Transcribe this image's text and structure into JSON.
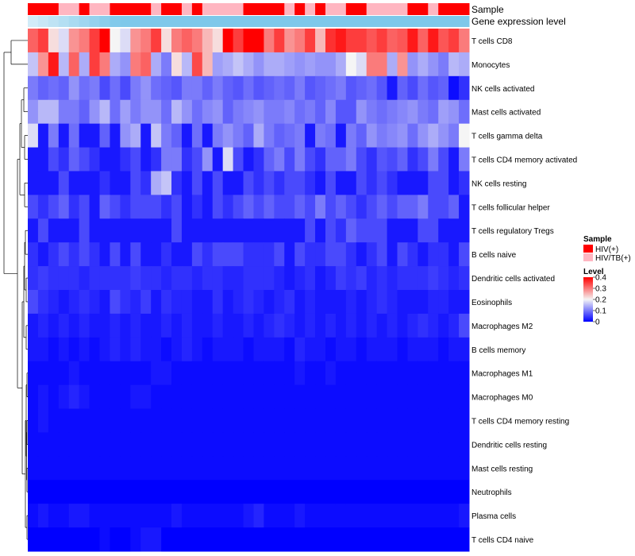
{
  "chart_data": {
    "type": "heatmap",
    "annotation_tracks": [
      "Sample",
      "Gene expression level"
    ],
    "rows": [
      "T cells CD8",
      "Monocytes",
      "NK cells activated",
      "Mast cells activated",
      "T cells gamma delta",
      "T cells CD4 memory activated",
      "NK cells resting",
      "T cells follicular helper",
      "T cells regulatory  Tregs",
      "B cells naive",
      "Dendritic cells activated",
      "Eosinophils",
      "Macrophages M2",
      "B cells memory",
      "Macrophages M1",
      "Macrophages M0",
      "T cells CD4 memory resting",
      "Dendritic cells resting",
      "Mast cells resting",
      "Neutrophils",
      "Plasma cells",
      "T cells CD4 naive"
    ],
    "columns": 43,
    "sample_track": [
      "HIV(+)",
      "HIV(+)",
      "HIV(+)",
      "HIV/TB(+)",
      "HIV/TB(+)",
      "HIV(+)",
      "HIV/TB(+)",
      "HIV/TB(+)",
      "HIV(+)",
      "HIV(+)",
      "HIV(+)",
      "HIV(+)",
      "HIV/TB(+)",
      "HIV(+)",
      "HIV(+)",
      "HIV/TB(+)",
      "HIV(+)",
      "HIV/TB(+)",
      "HIV/TB(+)",
      "HIV/TB(+)",
      "HIV/TB(+)",
      "HIV(+)",
      "HIV(+)",
      "HIV(+)",
      "HIV(+)",
      "HIV/TB(+)",
      "HIV(+)",
      "HIV/TB(+)",
      "HIV(+)",
      "HIV/TB(+)",
      "HIV/TB(+)",
      "HIV(+)",
      "HIV(+)",
      "HIV/TB(+)",
      "HIV/TB(+)",
      "HIV/TB(+)",
      "HIV/TB(+)",
      "HIV(+)",
      "HIV(+)",
      "HIV/TB(+)",
      "HIV(+)",
      "HIV(+)",
      "HIV(+)"
    ],
    "expression_track_color": "#7ec8ea",
    "values": [
      [
        0.32,
        0.35,
        0.22,
        0.18,
        0.28,
        0.3,
        0.35,
        0.4,
        0.2,
        0.18,
        0.28,
        0.3,
        0.35,
        0.22,
        0.3,
        0.32,
        0.3,
        0.25,
        0.22,
        0.4,
        0.35,
        0.4,
        0.4,
        0.3,
        0.35,
        0.28,
        0.3,
        0.35,
        0.25,
        0.36,
        0.38,
        0.35,
        0.35,
        0.33,
        0.35,
        0.32,
        0.33,
        0.38,
        0.32,
        0.38,
        0.33,
        0.35,
        0.3
      ],
      [
        0.16,
        0.28,
        0.38,
        0.15,
        0.32,
        0.14,
        0.35,
        0.3,
        0.14,
        0.12,
        0.3,
        0.32,
        0.14,
        0.1,
        0.22,
        0.15,
        0.34,
        0.25,
        0.13,
        0.14,
        0.16,
        0.14,
        0.12,
        0.14,
        0.14,
        0.13,
        0.12,
        0.13,
        0.12,
        0.12,
        0.14,
        0.2,
        0.18,
        0.3,
        0.3,
        0.14,
        0.28,
        0.12,
        0.14,
        0.12,
        0.1,
        0.15,
        0.14
      ],
      [
        0.1,
        0.08,
        0.09,
        0.08,
        0.12,
        0.09,
        0.1,
        0.06,
        0.09,
        0.06,
        0.1,
        0.12,
        0.09,
        0.08,
        0.07,
        0.1,
        0.1,
        0.08,
        0.1,
        0.08,
        0.07,
        0.09,
        0.07,
        0.08,
        0.09,
        0.08,
        0.1,
        0.07,
        0.08,
        0.09,
        0.1,
        0.07,
        0.08,
        0.09,
        0.07,
        0.02,
        0.08,
        0.06,
        0.09,
        0.07,
        0.08,
        0.01,
        0.04
      ],
      [
        0.12,
        0.15,
        0.15,
        0.1,
        0.1,
        0.08,
        0.12,
        0.15,
        0.09,
        0.13,
        0.1,
        0.12,
        0.12,
        0.09,
        0.15,
        0.12,
        0.09,
        0.11,
        0.12,
        0.08,
        0.1,
        0.11,
        0.12,
        0.1,
        0.1,
        0.11,
        0.09,
        0.1,
        0.08,
        0.11,
        0.07,
        0.07,
        0.12,
        0.1,
        0.09,
        0.1,
        0.11,
        0.12,
        0.1,
        0.09,
        0.13,
        0.12,
        0.09
      ],
      [
        0.18,
        0.02,
        0.1,
        0.02,
        0.09,
        0.02,
        0.02,
        0.08,
        0.02,
        0.12,
        0.14,
        0.02,
        0.16,
        0.1,
        0.08,
        0.02,
        0.09,
        0.02,
        0.1,
        0.12,
        0.1,
        0.08,
        0.14,
        0.1,
        0.08,
        0.09,
        0.1,
        0.02,
        0.1,
        0.09,
        0.02,
        0.1,
        0.08,
        0.12,
        0.1,
        0.11,
        0.12,
        0.09,
        0.12,
        0.14,
        0.12,
        0.1,
        0.2
      ],
      [
        0.02,
        0.02,
        0.06,
        0.04,
        0.08,
        0.06,
        0.04,
        0.02,
        0.02,
        0.04,
        0.06,
        0.02,
        0.04,
        0.1,
        0.1,
        0.04,
        0.06,
        0.12,
        0.02,
        0.18,
        0.06,
        0.02,
        0.04,
        0.08,
        0.1,
        0.06,
        0.1,
        0.06,
        0.04,
        0.08,
        0.08,
        0.1,
        0.06,
        0.04,
        0.07,
        0.06,
        0.08,
        0.04,
        0.06,
        0.1,
        0.06,
        0.02,
        0.1
      ],
      [
        0.02,
        0.02,
        0.02,
        0.06,
        0.02,
        0.02,
        0.02,
        0.04,
        0.02,
        0.02,
        0.06,
        0.04,
        0.14,
        0.16,
        0.04,
        0.02,
        0.06,
        0.02,
        0.06,
        0.02,
        0.02,
        0.06,
        0.04,
        0.06,
        0.04,
        0.06,
        0.06,
        0.04,
        0.02,
        0.06,
        0.02,
        0.02,
        0.06,
        0.04,
        0.06,
        0.04,
        0.02,
        0.02,
        0.02,
        0.06,
        0.06,
        0.02,
        0.04
      ],
      [
        0.06,
        0.04,
        0.06,
        0.08,
        0.04,
        0.06,
        0.02,
        0.08,
        0.06,
        0.04,
        0.06,
        0.06,
        0.06,
        0.04,
        0.06,
        0.02,
        0.04,
        0.02,
        0.06,
        0.04,
        0.06,
        0.08,
        0.06,
        0.08,
        0.06,
        0.06,
        0.08,
        0.06,
        0.1,
        0.06,
        0.08,
        0.06,
        0.04,
        0.06,
        0.08,
        0.06,
        0.08,
        0.08,
        0.1,
        0.06,
        0.06,
        0.08,
        0.02
      ],
      [
        0.02,
        0.06,
        0.02,
        0.02,
        0.02,
        0.06,
        0.02,
        0.02,
        0.02,
        0.02,
        0.02,
        0.02,
        0.02,
        0.02,
        0.06,
        0.02,
        0.02,
        0.02,
        0.02,
        0.02,
        0.02,
        0.02,
        0.02,
        0.02,
        0.02,
        0.02,
        0.02,
        0.06,
        0.02,
        0.06,
        0.04,
        0.08,
        0.06,
        0.06,
        0.06,
        0.02,
        0.02,
        0.02,
        0.06,
        0.06,
        0.02,
        0.02,
        0.02
      ],
      [
        0.04,
        0.02,
        0.04,
        0.06,
        0.04,
        0.06,
        0.04,
        0.02,
        0.06,
        0.02,
        0.06,
        0.02,
        0.02,
        0.04,
        0.02,
        0.02,
        0.06,
        0.04,
        0.06,
        0.06,
        0.06,
        0.04,
        0.04,
        0.04,
        0.06,
        0.02,
        0.06,
        0.04,
        0.04,
        0.06,
        0.06,
        0.04,
        0.02,
        0.04,
        0.06,
        0.02,
        0.06,
        0.04,
        0.02,
        0.04,
        0.04,
        0.02,
        0.06
      ],
      [
        0.04,
        0.05,
        0.04,
        0.04,
        0.04,
        0.03,
        0.04,
        0.04,
        0.04,
        0.04,
        0.05,
        0.04,
        0.04,
        0.03,
        0.04,
        0.04,
        0.03,
        0.04,
        0.04,
        0.03,
        0.03,
        0.04,
        0.04,
        0.04,
        0.03,
        0.02,
        0.03,
        0.04,
        0.02,
        0.03,
        0.05,
        0.04,
        0.05,
        0.03,
        0.04,
        0.03,
        0.04,
        0.04,
        0.04,
        0.05,
        0.04,
        0.03,
        0.04
      ],
      [
        0.06,
        0.04,
        0.03,
        0.02,
        0.03,
        0.04,
        0.03,
        0.02,
        0.06,
        0.04,
        0.03,
        0.05,
        0.02,
        0.04,
        0.03,
        0.03,
        0.02,
        0.02,
        0.04,
        0.02,
        0.03,
        0.04,
        0.03,
        0.02,
        0.03,
        0.04,
        0.02,
        0.03,
        0.02,
        0.02,
        0.02,
        0.03,
        0.02,
        0.03,
        0.04,
        0.03,
        0.02,
        0.02,
        0.02,
        0.03,
        0.03,
        0.02,
        0.02
      ],
      [
        0.02,
        0.03,
        0.02,
        0.03,
        0.02,
        0.03,
        0.02,
        0.02,
        0.03,
        0.02,
        0.03,
        0.02,
        0.02,
        0.03,
        0.02,
        0.03,
        0.02,
        0.02,
        0.03,
        0.02,
        0.02,
        0.03,
        0.02,
        0.03,
        0.04,
        0.03,
        0.02,
        0.03,
        0.02,
        0.03,
        0.02,
        0.03,
        0.02,
        0.03,
        0.02,
        0.03,
        0.02,
        0.03,
        0.04,
        0.03,
        0.02,
        0.03,
        0.06
      ],
      [
        0.02,
        0.02,
        0.01,
        0.02,
        0.01,
        0.02,
        0.01,
        0.02,
        0.03,
        0.02,
        0.03,
        0.02,
        0.02,
        0.01,
        0.02,
        0.03,
        0.02,
        0.01,
        0.02,
        0.02,
        0.02,
        0.01,
        0.02,
        0.02,
        0.02,
        0.01,
        0.03,
        0.02,
        0.02,
        0.01,
        0.02,
        0.02,
        0.01,
        0.02,
        0.02,
        0.02,
        0.01,
        0.02,
        0.02,
        0.02,
        0.01,
        0.02,
        0.02
      ],
      [
        0.01,
        0.01,
        0.01,
        0.01,
        0.02,
        0.01,
        0.01,
        0.01,
        0.01,
        0.01,
        0.01,
        0.01,
        0.02,
        0.02,
        0.01,
        0.01,
        0.01,
        0.01,
        0.01,
        0.01,
        0.01,
        0.01,
        0.01,
        0.01,
        0.01,
        0.01,
        0.02,
        0.01,
        0.01,
        0.02,
        0.01,
        0.01,
        0.01,
        0.01,
        0.01,
        0.01,
        0.01,
        0.01,
        0.01,
        0.01,
        0.01,
        0.01,
        0.01
      ],
      [
        0.01,
        0.02,
        0.01,
        0.02,
        0.03,
        0.02,
        0.01,
        0.01,
        0.01,
        0.01,
        0.02,
        0.02,
        0.01,
        0.01,
        0.01,
        0.01,
        0.01,
        0.01,
        0.01,
        0.01,
        0.01,
        0.01,
        0.01,
        0.01,
        0.01,
        0.01,
        0.01,
        0.01,
        0.01,
        0.01,
        0.01,
        0.01,
        0.01,
        0.01,
        0.01,
        0.01,
        0.01,
        0.01,
        0.01,
        0.01,
        0.01,
        0.01,
        0.01
      ],
      [
        0.01,
        0.02,
        0.01,
        0.01,
        0.01,
        0.01,
        0.01,
        0.01,
        0.01,
        0.01,
        0.01,
        0.01,
        0.01,
        0.01,
        0.01,
        0.01,
        0.01,
        0.01,
        0.01,
        0.01,
        0.01,
        0.01,
        0.01,
        0.01,
        0.01,
        0.01,
        0.01,
        0.01,
        0.01,
        0.01,
        0.01,
        0.01,
        0.01,
        0.01,
        0.01,
        0.01,
        0.01,
        0.01,
        0.01,
        0.01,
        0.01,
        0.01,
        0.01
      ],
      [
        0.01,
        0.01,
        0.01,
        0.01,
        0.01,
        0.01,
        0.01,
        0.01,
        0.01,
        0.01,
        0.01,
        0.01,
        0.01,
        0.01,
        0.01,
        0.01,
        0.01,
        0.01,
        0.01,
        0.01,
        0.01,
        0.01,
        0.01,
        0.01,
        0.01,
        0.01,
        0.01,
        0.01,
        0.01,
        0.01,
        0.01,
        0.01,
        0.01,
        0.01,
        0.01,
        0.01,
        0.01,
        0.01,
        0.01,
        0.01,
        0.01,
        0.01,
        0.01
      ],
      [
        0.01,
        0.01,
        0.01,
        0.01,
        0.01,
        0.01,
        0.01,
        0.01,
        0.01,
        0.01,
        0.01,
        0.01,
        0.01,
        0.01,
        0.01,
        0.01,
        0.01,
        0.01,
        0.01,
        0.01,
        0.01,
        0.01,
        0.01,
        0.01,
        0.01,
        0.01,
        0.01,
        0.01,
        0.01,
        0.01,
        0.01,
        0.01,
        0.01,
        0.01,
        0.01,
        0.01,
        0.01,
        0.01,
        0.01,
        0.01,
        0.01,
        0.01,
        0.01
      ],
      [
        0.0,
        0.0,
        0.0,
        0.0,
        0.0,
        0.0,
        0.0,
        0.0,
        0.0,
        0.0,
        0.0,
        0.0,
        0.0,
        0.0,
        0.0,
        0.0,
        0.0,
        0.0,
        0.0,
        0.0,
        0.0,
        0.0,
        0.0,
        0.0,
        0.0,
        0.0,
        0.0,
        0.0,
        0.0,
        0.0,
        0.0,
        0.0,
        0.0,
        0.0,
        0.0,
        0.0,
        0.0,
        0.0,
        0.0,
        0.0,
        0.0,
        0.0,
        0.0
      ],
      [
        0.01,
        0.02,
        0.01,
        0.01,
        0.02,
        0.02,
        0.01,
        0.01,
        0.01,
        0.01,
        0.01,
        0.01,
        0.01,
        0.01,
        0.02,
        0.01,
        0.01,
        0.01,
        0.01,
        0.01,
        0.01,
        0.02,
        0.03,
        0.01,
        0.01,
        0.01,
        0.02,
        0.01,
        0.01,
        0.01,
        0.01,
        0.01,
        0.01,
        0.01,
        0.01,
        0.01,
        0.01,
        0.01,
        0.01,
        0.01,
        0.01,
        0.01,
        0.02
      ],
      [
        0.0,
        0.0,
        0.0,
        0.0,
        0.0,
        0.0,
        0.0,
        0.01,
        0.0,
        0.0,
        0.01,
        0.02,
        0.02,
        0.0,
        0.0,
        0.0,
        0.0,
        0.0,
        0.0,
        0.0,
        0.0,
        0.0,
        0.0,
        0.0,
        0.0,
        0.0,
        0.0,
        0.0,
        0.0,
        0.0,
        0.0,
        0.0,
        0.0,
        0.0,
        0.0,
        0.0,
        0.0,
        0.0,
        0.0,
        0.0,
        0.0,
        0.0,
        0.0
      ]
    ],
    "sample_legend": {
      "title": "Sample",
      "entries": [
        {
          "label": "HIV(+)",
          "color": "#ff0000"
        },
        {
          "label": "HIV/TB(+)",
          "color": "#ffb6c1"
        }
      ]
    },
    "level_legend": {
      "title": "Level",
      "ticks": [
        "0.4",
        "0.3",
        "0.2",
        "0.1",
        "0"
      ],
      "tick_values": [
        0.4,
        0.3,
        0.2,
        0.1,
        0
      ],
      "range": [
        0,
        0.4
      ],
      "colors": {
        "low": "#0000ff",
        "mid": "#f5f5f5",
        "high": "#ff0000"
      }
    }
  }
}
